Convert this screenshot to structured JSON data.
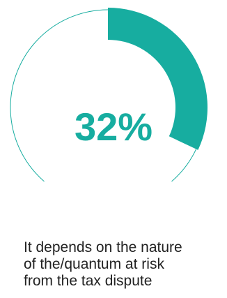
{
  "chart_data": {
    "type": "pie",
    "style": "donut-outline",
    "values": [
      32,
      68
    ],
    "value_label": "32%",
    "caption_lines": [
      "It depends on the nature",
      "of the/quantum at risk",
      "from the tax dispute"
    ]
  },
  "colors": {
    "accent": "#17ada0",
    "outline": "#17ada0",
    "caption_text": "#222222"
  }
}
